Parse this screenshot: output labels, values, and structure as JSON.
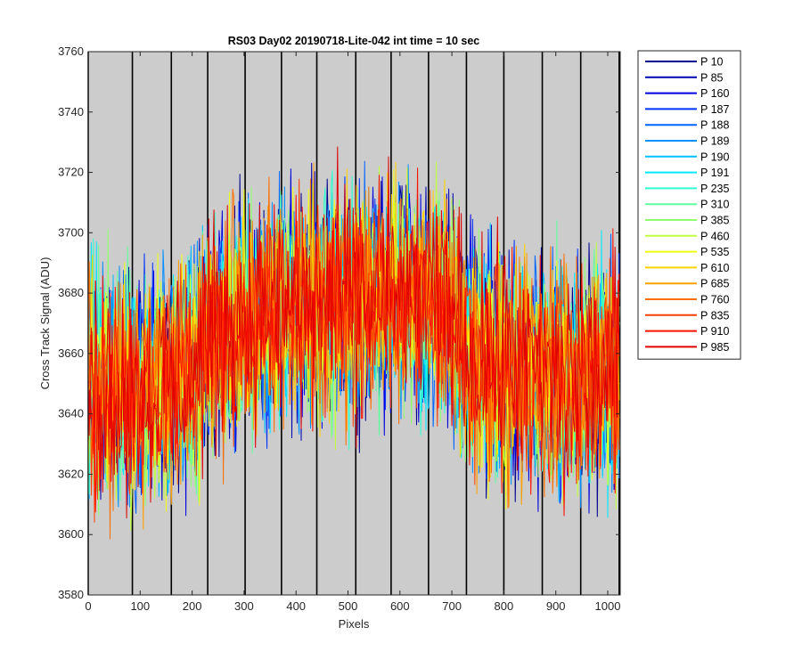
{
  "chart_data": {
    "type": "line",
    "title": "RS03 Day02 20190718-Lite-042 int time = 10 sec",
    "xlabel": "Pixels",
    "ylabel": "Cross Track Signal (ADU)",
    "xlim": [
      0,
      1024
    ],
    "ylim": [
      3580,
      3760
    ],
    "xticks": [
      "0",
      "100",
      "200",
      "300",
      "400",
      "500",
      "600",
      "700",
      "800",
      "900",
      "1000"
    ],
    "yticks": [
      "3580",
      "3600",
      "3620",
      "3640",
      "3660",
      "3680",
      "3700",
      "3720",
      "3740",
      "3760"
    ],
    "background_color": "#cccccc",
    "vertical_lines_x": [
      0,
      85,
      160,
      230,
      302,
      372,
      440,
      515,
      583,
      655,
      728,
      800,
      874,
      948,
      1022
    ],
    "legend_placement": "outside-right",
    "noise_amplitude": 18,
    "series": [
      {
        "name": "P 10",
        "color": "#00008f"
      },
      {
        "name": "P 85",
        "color": "#0000b3"
      },
      {
        "name": "P 160",
        "color": "#0000e0"
      },
      {
        "name": "P 187",
        "color": "#0033ff"
      },
      {
        "name": "P 188",
        "color": "#0063ff"
      },
      {
        "name": "P 189",
        "color": "#0090ff"
      },
      {
        "name": "P 190",
        "color": "#00bfff"
      },
      {
        "name": "P 191",
        "color": "#00eaff"
      },
      {
        "name": "P 235",
        "color": "#30ffcf"
      },
      {
        "name": "P 310",
        "color": "#60ff9f"
      },
      {
        "name": "P 385",
        "color": "#8fff70"
      },
      {
        "name": "P 460",
        "color": "#c0ff40"
      },
      {
        "name": "P 535",
        "color": "#efff10"
      },
      {
        "name": "P 610",
        "color": "#ffd000"
      },
      {
        "name": "P 685",
        "color": "#ff9f00"
      },
      {
        "name": "P 760",
        "color": "#ff7000"
      },
      {
        "name": "P 835",
        "color": "#ff4000"
      },
      {
        "name": "P 910",
        "color": "#ff1000"
      },
      {
        "name": "P 985",
        "color": "#df0000"
      }
    ],
    "baseline_profile": [
      [
        0,
        3650
      ],
      [
        100,
        3648
      ],
      [
        200,
        3652
      ],
      [
        230,
        3665
      ],
      [
        300,
        3672
      ],
      [
        400,
        3676
      ],
      [
        500,
        3678
      ],
      [
        600,
        3679
      ],
      [
        700,
        3674
      ],
      [
        730,
        3662
      ],
      [
        800,
        3655
      ],
      [
        900,
        3652
      ],
      [
        1022,
        3653
      ]
    ]
  }
}
